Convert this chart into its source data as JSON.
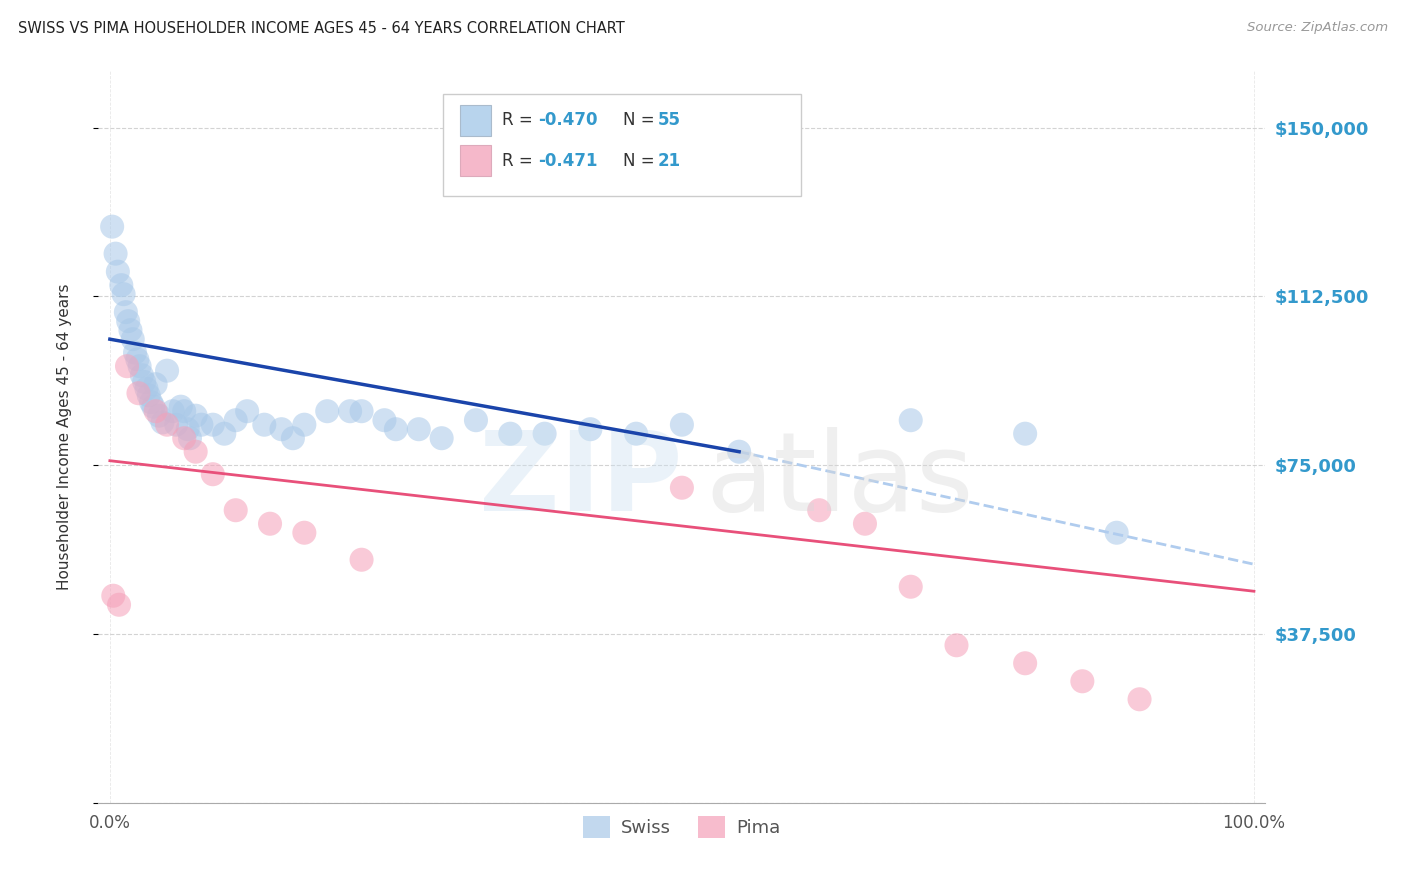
{
  "title": "SWISS VS PIMA HOUSEHOLDER INCOME AGES 45 - 64 YEARS CORRELATION CHART",
  "source": "Source: ZipAtlas.com",
  "ylabel": "Householder Income Ages 45 - 64 years",
  "xlim": [
    -1,
    101
  ],
  "ylim": [
    0,
    162500
  ],
  "yticks": [
    0,
    37500,
    75000,
    112500,
    150000
  ],
  "ytick_labels_right": [
    "",
    "$37,500",
    "$75,000",
    "$112,500",
    "$150,000"
  ],
  "xtick_positions": [
    0,
    100
  ],
  "xtick_labels": [
    "0.0%",
    "100.0%"
  ],
  "swiss_R": "-0.470",
  "swiss_N": "55",
  "pima_R": "-0.471",
  "pima_N": "21",
  "swiss_dot_color": "#a8c8e8",
  "swiss_line_color": "#1a44aa",
  "pima_dot_color": "#f5a0b8",
  "pima_line_color": "#e8507a",
  "dashed_color": "#b0ccee",
  "legend_swiss_fill": "#b8d4ed",
  "legend_pima_fill": "#f5b8ca",
  "right_label_color": "#3399cc",
  "swiss_x": [
    0.2,
    0.5,
    0.7,
    1.0,
    1.2,
    1.4,
    1.6,
    1.8,
    2.0,
    2.2,
    2.4,
    2.6,
    2.8,
    3.0,
    3.2,
    3.4,
    3.6,
    3.8,
    4.0,
    4.3,
    4.6,
    5.0,
    5.5,
    5.8,
    6.2,
    6.5,
    6.8,
    7.0,
    7.5,
    8.0,
    9.0,
    10.0,
    11.0,
    12.0,
    13.5,
    15.0,
    16.0,
    17.0,
    19.0,
    21.0,
    22.0,
    24.0,
    25.0,
    27.0,
    29.0,
    32.0,
    35.0,
    38.0,
    42.0,
    46.0,
    50.0,
    55.0,
    70.0,
    80.0,
    88.0
  ],
  "swiss_y": [
    128000,
    122000,
    118000,
    115000,
    113000,
    109000,
    107000,
    105000,
    103000,
    100000,
    98500,
    97000,
    95000,
    93500,
    92000,
    90500,
    89000,
    88000,
    93000,
    86000,
    84500,
    96000,
    87000,
    84000,
    88000,
    87000,
    83000,
    81000,
    86000,
    84000,
    84000,
    82000,
    85000,
    87000,
    84000,
    83000,
    81000,
    84000,
    87000,
    87000,
    87000,
    85000,
    83000,
    83000,
    81000,
    85000,
    82000,
    82000,
    83000,
    82000,
    84000,
    78000,
    85000,
    82000,
    60000
  ],
  "pima_x": [
    0.3,
    0.8,
    1.5,
    2.5,
    4.0,
    5.0,
    6.5,
    7.5,
    9.0,
    11.0,
    14.0,
    17.0,
    22.0,
    50.0,
    62.0,
    66.0,
    70.0,
    74.0,
    80.0,
    85.0,
    90.0
  ],
  "pima_y": [
    46000,
    44000,
    97000,
    91000,
    87000,
    84000,
    81000,
    78000,
    73000,
    65000,
    62000,
    60000,
    54000,
    70000,
    65000,
    62000,
    48000,
    35000,
    31000,
    27000,
    23000
  ],
  "swiss_line_x0": 0,
  "swiss_line_x1": 55,
  "swiss_dash_x0": 55,
  "swiss_dash_x1": 100,
  "pima_line_x0": 0,
  "pima_line_x1": 100
}
